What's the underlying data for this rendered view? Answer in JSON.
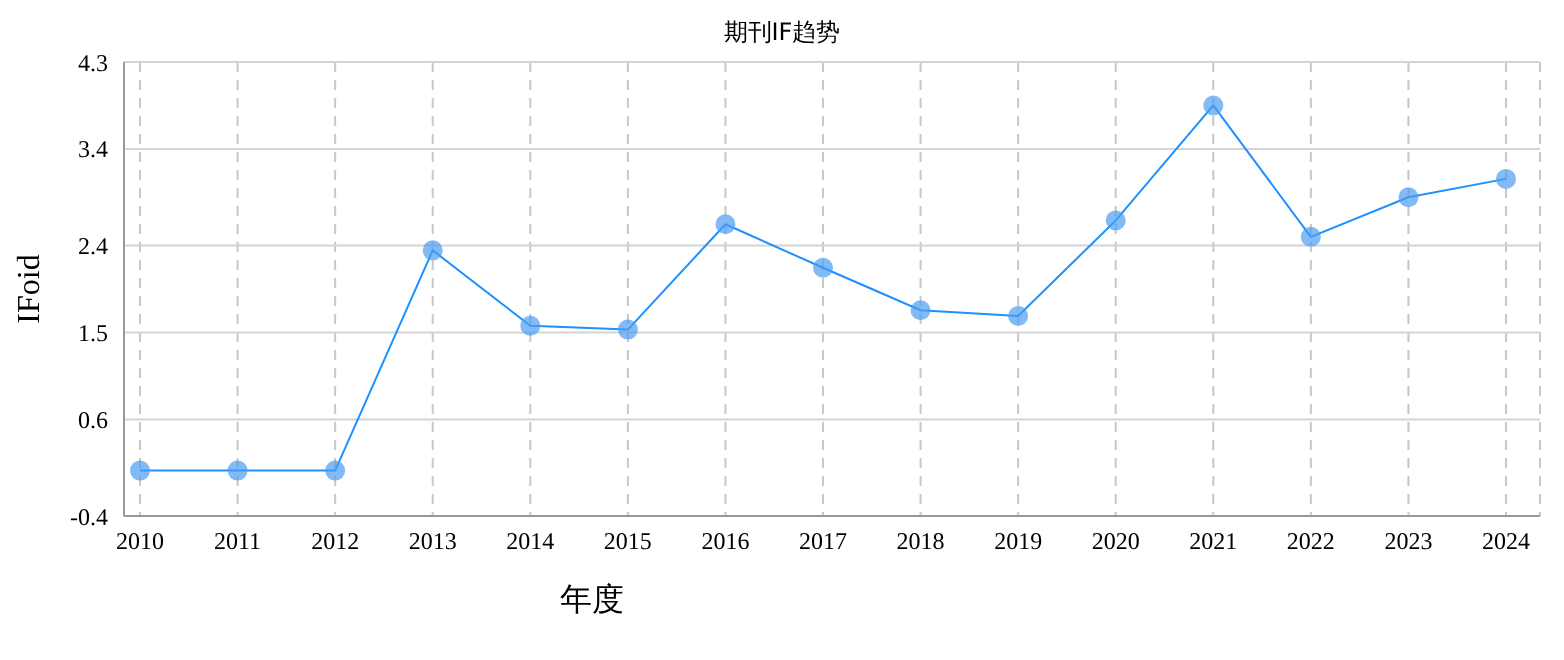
{
  "chart_data": {
    "type": "line",
    "title": "期刊IF趋势",
    "xlabel": "年度",
    "ylabel": "IFoid",
    "categories": [
      "2010",
      "2011",
      "2012",
      "2013",
      "2014",
      "2015",
      "2016",
      "2017",
      "2018",
      "2019",
      "2020",
      "2021",
      "2022",
      "2023",
      "2024"
    ],
    "series": [
      {
        "color": "#1e90ff",
        "values": [
          0.07,
          0.07,
          0.07,
          2.35,
          1.57,
          1.53,
          2.62,
          2.17,
          1.73,
          1.67,
          2.66,
          3.85,
          2.49,
          2.9,
          3.09
        ]
      }
    ],
    "ylim": [
      -0.4,
      4.3
    ],
    "yticks": [
      -0.4,
      0.6,
      1.5,
      2.4,
      3.4,
      4.3
    ],
    "grid": true,
    "marker": "circle",
    "line_style": "solid"
  }
}
